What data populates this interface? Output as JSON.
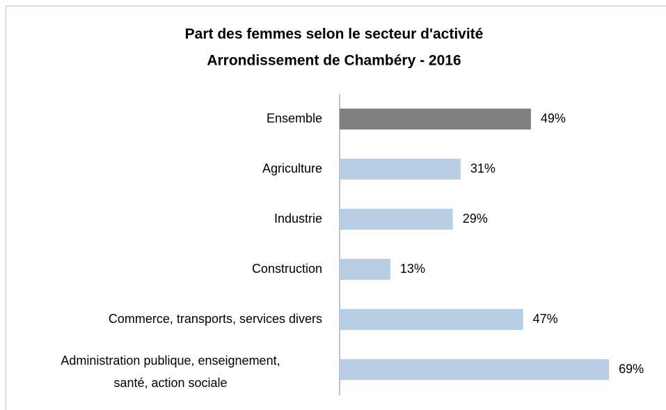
{
  "chart_data": {
    "type": "barh",
    "title": [
      "Part des femmes selon le secteur d'activité",
      "Arrondissement de Chambéry - 2016"
    ],
    "categories": [
      "Ensemble",
      "Agriculture",
      "Industrie",
      "Construction",
      "Commerce, transports, services divers",
      [
        "Administration publique, enseignement,",
        "santé, action sociale"
      ]
    ],
    "values": [
      49,
      31,
      29,
      13,
      47,
      69
    ],
    "value_labels": [
      "49%",
      "31%",
      "29%",
      "13%",
      "47%",
      "69%"
    ],
    "colors": [
      "#808080",
      "#b9cde5",
      "#b9cde5",
      "#b9cde5",
      "#b9cde5",
      "#b9cde5"
    ]
  }
}
